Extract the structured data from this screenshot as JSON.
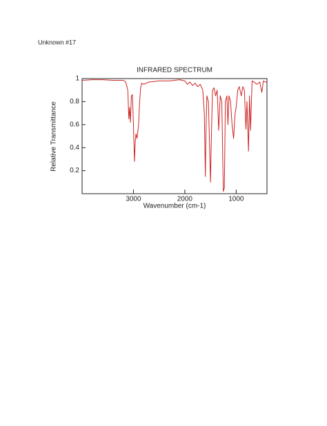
{
  "heading": "Unknown #17",
  "chart_data": {
    "type": "line",
    "title": "INFRARED SPECTRUM",
    "x_label": "Wavenumber (cm-1)",
    "y_label": "Relative Transmittance",
    "xlim": [
      4000,
      400
    ],
    "ylim": [
      0,
      1
    ],
    "xticks": [
      3000,
      2000,
      1000
    ],
    "yticks": [
      0.2,
      0.4,
      0.6,
      0.8,
      1
    ],
    "series": [
      {
        "name": "Transmittance",
        "color": "#cc2222",
        "x": [
          4000,
          3800,
          3600,
          3400,
          3200,
          3150,
          3110,
          3090,
          3075,
          3060,
          3040,
          3020,
          3000,
          2980,
          2965,
          2950,
          2930,
          2900,
          2880,
          2860,
          2840,
          2800,
          2700,
          2500,
          2300,
          2100,
          2000,
          1950,
          1900,
          1850,
          1800,
          1750,
          1700,
          1650,
          1620,
          1600,
          1585,
          1570,
          1540,
          1500,
          1480,
          1460,
          1430,
          1400,
          1370,
          1340,
          1310,
          1280,
          1250,
          1230,
          1210,
          1180,
          1160,
          1140,
          1110,
          1080,
          1050,
          1020,
          1000,
          970,
          940,
          900,
          870,
          840,
          810,
          790,
          760,
          740,
          720,
          690,
          650,
          600,
          540,
          500,
          470,
          430,
          400
        ],
        "values": [
          0.985,
          0.99,
          0.99,
          0.985,
          0.985,
          0.97,
          0.9,
          0.65,
          0.75,
          0.62,
          0.85,
          0.86,
          0.6,
          0.28,
          0.45,
          0.52,
          0.48,
          0.6,
          0.8,
          0.92,
          0.96,
          0.95,
          0.97,
          0.98,
          0.98,
          0.99,
          0.98,
          0.95,
          0.97,
          0.94,
          0.96,
          0.93,
          0.95,
          0.9,
          0.7,
          0.15,
          0.6,
          0.85,
          0.8,
          0.1,
          0.55,
          0.9,
          0.92,
          0.85,
          0.9,
          0.55,
          0.85,
          0.8,
          0.02,
          0.05,
          0.8,
          0.85,
          0.6,
          0.85,
          0.8,
          0.6,
          0.48,
          0.7,
          0.75,
          0.9,
          0.93,
          0.85,
          0.93,
          0.9,
          0.56,
          0.8,
          0.37,
          0.85,
          0.55,
          0.98,
          0.97,
          0.95,
          0.97,
          0.88,
          0.98,
          0.97,
          0.97
        ]
      }
    ]
  }
}
